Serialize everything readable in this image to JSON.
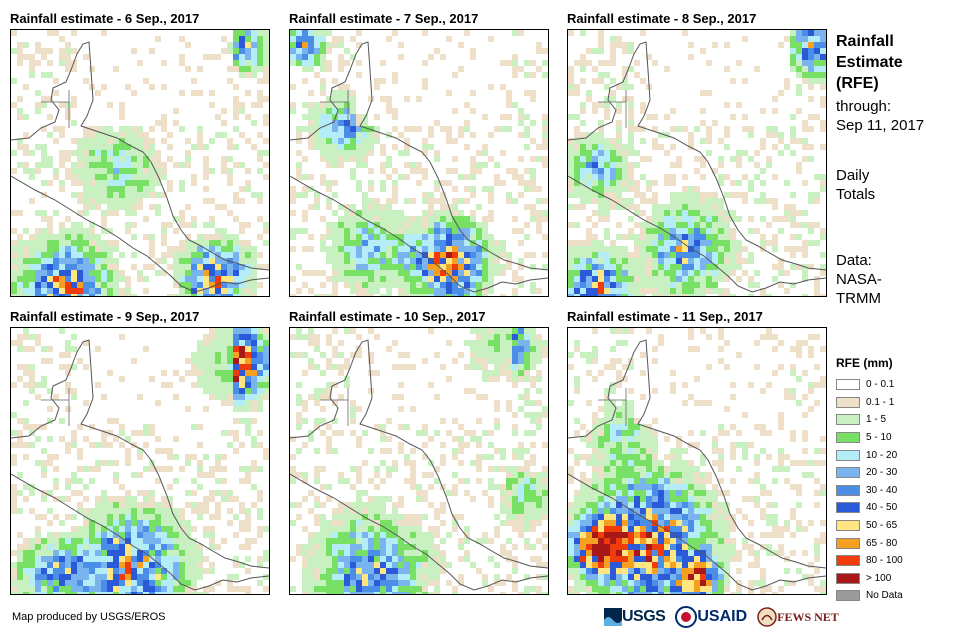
{
  "panels": [
    {
      "title": "Rainfall estimate - 6 Sep., 2017",
      "seed": 6
    },
    {
      "title": "Rainfall estimate - 7 Sep., 2017",
      "seed": 7
    },
    {
      "title": "Rainfall estimate - 8 Sep., 2017",
      "seed": 8
    },
    {
      "title": "Rainfall estimate - 9 Sep., 2017",
      "seed": 9
    },
    {
      "title": "Rainfall estimate - 10 Sep., 2017",
      "seed": 10
    },
    {
      "title": "Rainfall estimate - 11 Sep., 2017",
      "seed": 11
    }
  ],
  "sidebar": {
    "title_line1": "Rainfall",
    "title_line2": "Estimate",
    "title_line3": "(RFE)",
    "through_label": "through:",
    "through_date": "Sep 11, 2017",
    "totals_line1": "Daily",
    "totals_line2": "Totals",
    "data_line1": "Data:",
    "data_line2": "NASA-",
    "data_line3": "TRMM"
  },
  "legend": {
    "title": "RFE (mm)",
    "items": [
      {
        "label": "0 - 0.1",
        "color": "#ffffff"
      },
      {
        "label": "0.1 - 1",
        "color": "#eedfc8"
      },
      {
        "label": "1 - 5",
        "color": "#c8f0c0"
      },
      {
        "label": "5 - 10",
        "color": "#78e064"
      },
      {
        "label": "10 - 20",
        "color": "#b4ecf8"
      },
      {
        "label": "20 - 30",
        "color": "#7ab4ee"
      },
      {
        "label": "30 - 40",
        "color": "#4a8ee8"
      },
      {
        "label": "40 - 50",
        "color": "#2a5ad8"
      },
      {
        "label": "50 - 65",
        "color": "#ffe680"
      },
      {
        "label": "65 - 80",
        "color": "#f5a020"
      },
      {
        "label": "80 - 100",
        "color": "#f03c0a"
      },
      {
        "label": "> 100",
        "color": "#a81818"
      },
      {
        "label": "No Data",
        "color": "#9a9a9a"
      }
    ]
  },
  "footer": {
    "credit": "Map produced by USGS/EROS"
  }
}
